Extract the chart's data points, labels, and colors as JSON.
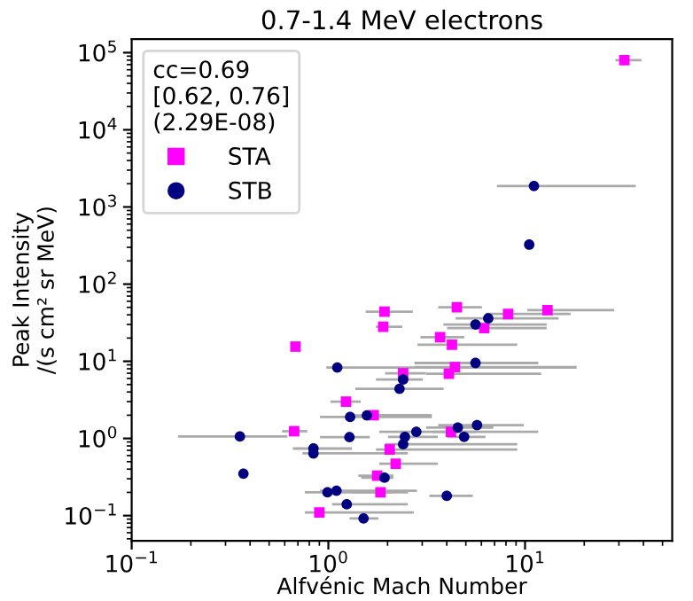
{
  "chart_data": {
    "type": "scatter",
    "title": "0.7-1.4 MeV electrons",
    "xlabel": "Alfvénic Mach Number",
    "ylabel": "Peak Intensity\n/(s cm² sr MeV)",
    "legend_title": "cc=0.69\n[0.62, 0.76]\n(2.29E-08)",
    "log": "xy",
    "xlim": [
      0.1,
      56
    ],
    "ylim": [
      0.047,
      150000
    ],
    "xticks": [
      {
        "value": 0.1,
        "label": "10$^{−1}$"
      },
      {
        "value": 1,
        "label": "10$^{0}$"
      },
      {
        "value": 10,
        "label": "10$^{1}$"
      }
    ],
    "yticks": [
      {
        "value": 0.1,
        "label": "10$^{−1}$"
      },
      {
        "value": 1,
        "label": "10$^{0}$"
      },
      {
        "value": 10,
        "label": "10$^{1}$"
      },
      {
        "value": 100,
        "label": "10$^{2}$"
      },
      {
        "value": 1000,
        "label": "10$^{3}$"
      },
      {
        "value": 10000,
        "label": "10$^{4}$"
      },
      {
        "value": 100000,
        "label": "10$^{5}$"
      }
    ],
    "grid": false,
    "legend": "top left",
    "series": [
      {
        "name": "STA",
        "color": "#ff00ff",
        "marker": "square",
        "x": [
          1.93,
          4.5,
          8.2,
          13,
          1.9,
          6.2,
          0.68,
          3.7,
          4.25,
          2.4,
          4.4,
          4.1,
          1.23,
          1.7,
          0.67,
          4.2,
          2.05,
          2.2,
          1.77,
          1.84,
          0.9,
          32
        ],
        "values": [
          44,
          50,
          41,
          46,
          28,
          27,
          15.5,
          20.5,
          16.4,
          7,
          8.4,
          6.9,
          3.0,
          2.0,
          1.24,
          1.22,
          0.72,
          0.47,
          0.33,
          0.2,
          0.11,
          80000
        ],
        "xerrors": [
          [
            1.57,
            2.65
          ],
          [
            3.67,
            5.95
          ],
          [
            6.4,
            16.8
          ],
          [
            10.4,
            28
          ],
          [
            1.77,
            2.34
          ],
          [
            4.07,
            12.7
          ],
          null,
          [
            2.98,
            4.84
          ],
          [
            2.88,
            9.0
          ],
          [
            1.97,
            3.09
          ],
          [
            2.78,
            18
          ],
          [
            3.19,
            11.9
          ],
          [
            1.04,
            1.44
          ],
          [
            1.49,
            3.31
          ],
          [
            0.59,
            0.77
          ],
          [
            3.43,
            11.5
          ],
          [
            1.77,
            9.0
          ],
          [
            1.84,
            3.55
          ],
          [
            1.44,
            2.11
          ],
          [
            1.35,
            2.51
          ],
          [
            0.77,
            2.68
          ],
          [
            29.2,
            38.5
          ]
        ]
      },
      {
        "name": "STB",
        "color": "#000080",
        "marker": "circle",
        "x": [
          11.1,
          10.5,
          6.5,
          5.6,
          1.11,
          5.6,
          2.4,
          2.3,
          1.29,
          1.57,
          0.355,
          1.28,
          2.8,
          2.45,
          2.4,
          4.55,
          5.7,
          4.9,
          0.84,
          0.84,
          0.37,
          1.93,
          0.99,
          1.1,
          4.0,
          1.24,
          1.51
        ],
        "values": [
          1870,
          325,
          36,
          30,
          8.3,
          9.5,
          5.8,
          4.4,
          1.9,
          1.99,
          1.06,
          1.04,
          1.22,
          1.05,
          0.84,
          1.38,
          1.49,
          1.05,
          0.74,
          0.64,
          0.35,
          0.31,
          0.2,
          0.21,
          0.18,
          0.14,
          0.092
        ],
        "xerrors": [
          [
            7.3,
            36
          ],
          null,
          [
            4.5,
            14.6
          ],
          [
            3.9,
            12.7
          ],
          [
            0.99,
            18
          ],
          [
            2.78,
            11.5
          ],
          [
            1.77,
            2.98
          ],
          [
            1.39,
            3.8
          ],
          [
            0.92,
            3.31
          ],
          [
            1.3,
            1.97
          ],
          [
            0.175,
            0.61
          ],
          [
            0.92,
            1.6
          ],
          [
            1.84,
            5.55
          ],
          [
            2.04,
            3.55
          ],
          [
            1.97,
            9.0
          ],
          [
            3.19,
            6.8
          ],
          [
            3.67,
            9.7
          ],
          [
            4.07,
            6.2
          ],
          [
            0.67,
            1.3
          ],
          [
            0.75,
            2.5
          ],
          null,
          [
            1.49,
            2.11
          ],
          [
            0.77,
            2.11
          ],
          [
            0.92,
            2.78
          ],
          [
            3.31,
            5.35
          ],
          [
            1.06,
            2.5
          ],
          [
            1.3,
            1.77
          ]
        ]
      }
    ]
  }
}
